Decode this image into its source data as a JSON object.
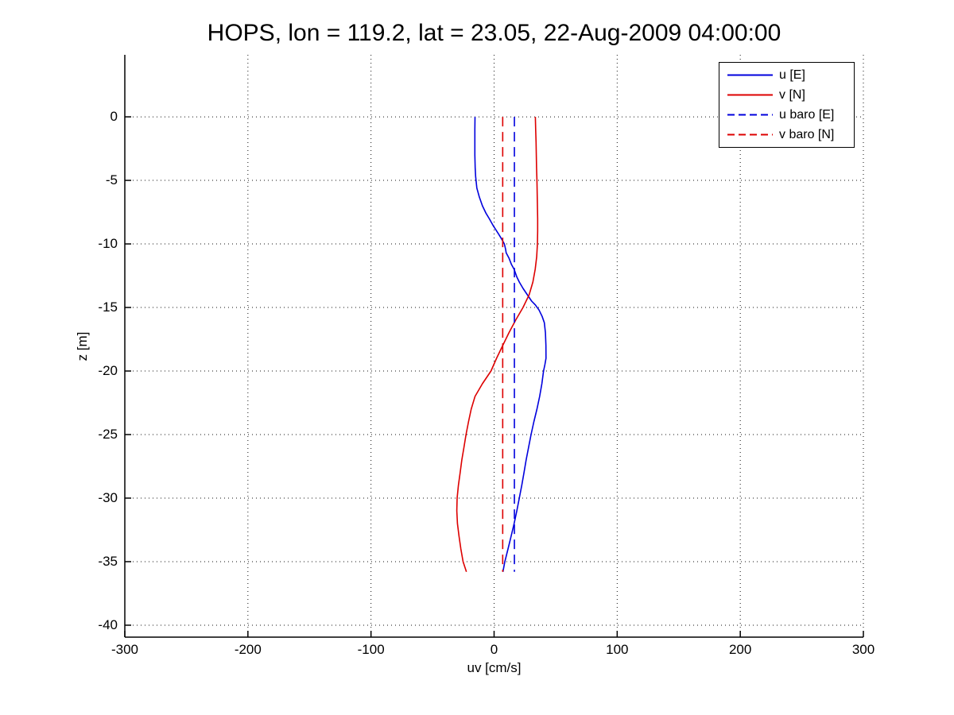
{
  "title": "HOPS, lon = 119.2, lat = 23.05, 22-Aug-2009 04:00:00",
  "axes": {
    "xlabel": "uv [cm/s]",
    "ylabel": "z [m]",
    "xticks": [
      {
        "value": -300,
        "label": "-300"
      },
      {
        "value": -200,
        "label": "-200"
      },
      {
        "value": -100,
        "label": "-100"
      },
      {
        "value": 0,
        "label": "0"
      },
      {
        "value": 100,
        "label": "100"
      },
      {
        "value": 200,
        "label": "200"
      },
      {
        "value": 300,
        "label": "300"
      }
    ],
    "yticks": [
      {
        "value": 0,
        "label": "0"
      },
      {
        "value": -5,
        "label": "-5"
      },
      {
        "value": -10,
        "label": "-10"
      },
      {
        "value": -15,
        "label": "-15"
      },
      {
        "value": -20,
        "label": "-20"
      },
      {
        "value": -25,
        "label": "-25"
      },
      {
        "value": -30,
        "label": "-30"
      },
      {
        "value": -35,
        "label": "-35"
      },
      {
        "value": -40,
        "label": "-40"
      }
    ]
  },
  "legend": {
    "position": "top-right",
    "items": [
      {
        "label": "u [E]",
        "color": "#0000dd",
        "line_style": "solid"
      },
      {
        "label": "v [N]",
        "color": "#dd0000",
        "line_style": "solid"
      },
      {
        "label": "u baro [E]",
        "color": "#0000dd",
        "line_style": "dashed"
      },
      {
        "label": "v baro [N]",
        "color": "#dd0000",
        "line_style": "dashed"
      }
    ]
  },
  "chart_data": {
    "type": "line",
    "title": "HOPS, lon = 119.2, lat = 23.05, 22-Aug-2009 04:00:00",
    "xlabel": "uv [cm/s]",
    "ylabel": "z [m]",
    "xlim": [
      -300,
      300
    ],
    "ylim": [
      -40.94,
      4.88
    ],
    "grid": "dotted",
    "grid_color": "#111111",
    "axis_color": "#000000",
    "units": {
      "x": "cm/s",
      "y": "m"
    },
    "series": [
      {
        "name": "u [E]",
        "color": "#0000dd",
        "style": "solid",
        "points": [
          [
            -15.5,
            0
          ],
          [
            -15.6,
            -1
          ],
          [
            -15.6,
            -2
          ],
          [
            -15.6,
            -3
          ],
          [
            -15.4,
            -4
          ],
          [
            -15.0,
            -4.7
          ],
          [
            -14.0,
            -5.6
          ],
          [
            -12.0,
            -6.3
          ],
          [
            -9.5,
            -7.0
          ],
          [
            -6.5,
            -7.6
          ],
          [
            -4.0,
            -8.0
          ],
          [
            -0.5,
            -8.6
          ],
          [
            3.5,
            -9.2
          ],
          [
            6.0,
            -9.6
          ],
          [
            8.3,
            -10.0
          ],
          [
            9.3,
            -10.4
          ],
          [
            9.8,
            -10.7
          ],
          [
            12.0,
            -11.1
          ],
          [
            14.0,
            -11.6
          ],
          [
            16.3,
            -12.0
          ],
          [
            18.5,
            -12.6
          ],
          [
            20.5,
            -13.0
          ],
          [
            23.5,
            -13.5
          ],
          [
            27.0,
            -14.0
          ],
          [
            30.5,
            -14.5
          ],
          [
            33.5,
            -14.8
          ],
          [
            36.5,
            -15.2
          ],
          [
            39.0,
            -15.7
          ],
          [
            40.8,
            -16.2
          ],
          [
            41.7,
            -17.0
          ],
          [
            42.1,
            -18.0
          ],
          [
            42.2,
            -19.0
          ],
          [
            41.3,
            -19.5
          ],
          [
            40.2,
            -20.0
          ],
          [
            38.8,
            -21.0
          ],
          [
            37.0,
            -22.0
          ],
          [
            34.8,
            -23.0
          ],
          [
            32.3,
            -24.0
          ],
          [
            30.0,
            -25.0
          ],
          [
            28.0,
            -26.0
          ],
          [
            26.0,
            -27.0
          ],
          [
            24.3,
            -28.0
          ],
          [
            22.5,
            -29.0
          ],
          [
            20.5,
            -30.0
          ],
          [
            18.5,
            -31.0
          ],
          [
            16.3,
            -32.0
          ],
          [
            13.8,
            -33.0
          ],
          [
            11.3,
            -34.0
          ],
          [
            8.7,
            -35.0
          ],
          [
            7.2,
            -35.8
          ]
        ]
      },
      {
        "name": "v [N]",
        "color": "#dd0000",
        "style": "solid",
        "points": [
          [
            33.5,
            0
          ],
          [
            33.8,
            -1
          ],
          [
            34.1,
            -2
          ],
          [
            34.3,
            -3
          ],
          [
            34.5,
            -4
          ],
          [
            34.8,
            -5
          ],
          [
            35.0,
            -6
          ],
          [
            35.2,
            -7
          ],
          [
            35.4,
            -8
          ],
          [
            35.4,
            -9
          ],
          [
            35.2,
            -10
          ],
          [
            34.6,
            -11
          ],
          [
            33.4,
            -12
          ],
          [
            31.5,
            -13
          ],
          [
            28.5,
            -14
          ],
          [
            23.5,
            -15
          ],
          [
            17.5,
            -16
          ],
          [
            12.0,
            -17
          ],
          [
            7.0,
            -18
          ],
          [
            2.0,
            -19
          ],
          [
            -2.5,
            -20
          ],
          [
            -9.5,
            -21
          ],
          [
            -15.5,
            -22
          ],
          [
            -18.6,
            -23
          ],
          [
            -20.8,
            -24
          ],
          [
            -22.8,
            -25
          ],
          [
            -24.5,
            -26
          ],
          [
            -26.2,
            -27
          ],
          [
            -27.6,
            -28
          ],
          [
            -29.0,
            -29
          ],
          [
            -30.0,
            -30
          ],
          [
            -30.3,
            -31
          ],
          [
            -29.8,
            -32
          ],
          [
            -28.5,
            -33
          ],
          [
            -27.0,
            -34
          ],
          [
            -25.2,
            -35
          ],
          [
            -22.5,
            -35.8
          ]
        ]
      },
      {
        "name": "u baro [E]",
        "color": "#0000dd",
        "style": "dashed",
        "constant_value": 16.5,
        "z_range": [
          0,
          -35.8
        ]
      },
      {
        "name": "v baro [N]",
        "color": "#dd0000",
        "style": "dashed",
        "constant_value": 7.0,
        "z_range": [
          0,
          -35.8
        ]
      }
    ]
  }
}
